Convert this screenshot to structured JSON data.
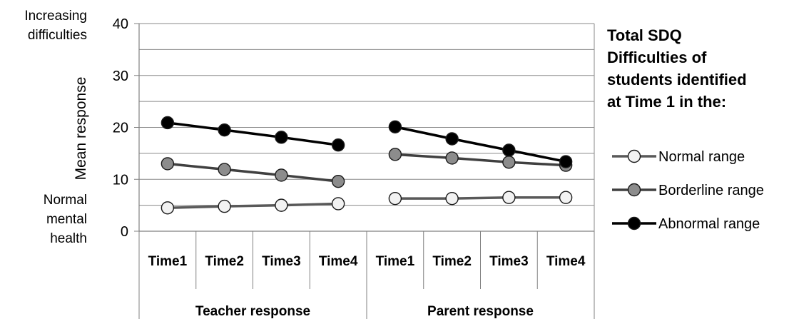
{
  "chart_data": {
    "type": "line",
    "ylabel": "Mean response",
    "ylim": [
      0,
      40
    ],
    "yticks": [
      0,
      10,
      20,
      30,
      40
    ],
    "y_top_annotation": [
      "Increasing",
      "difficulties"
    ],
    "y_bottom_annotation": [
      "Normal",
      "mental",
      "health"
    ],
    "groups": [
      {
        "label": "Teacher response",
        "categories": [
          "Time1",
          "Time2",
          "Time3",
          "Time4"
        ]
      },
      {
        "label": "Parent response",
        "categories": [
          "Time1",
          "Time2",
          "Time3",
          "Time4"
        ]
      }
    ],
    "legend_title": [
      "Total SDQ",
      "Difficulties of",
      "students identified",
      "at Time 1 in the:"
    ],
    "series": [
      {
        "name": "Normal range",
        "marker_fill": "#f2f2f2",
        "line_color": "#595959",
        "groups": [
          [
            4.5,
            4.8,
            5.0,
            5.3
          ],
          [
            6.3,
            6.3,
            6.5,
            6.5
          ]
        ]
      },
      {
        "name": "Borderline range",
        "marker_fill": "#8c8c8c",
        "line_color": "#404040",
        "groups": [
          [
            13.0,
            11.9,
            10.8,
            9.6
          ],
          [
            14.8,
            14.1,
            13.3,
            12.7
          ]
        ]
      },
      {
        "name": "Abnormal range",
        "marker_fill": "#000000",
        "line_color": "#000000",
        "groups": [
          [
            20.9,
            19.5,
            18.1,
            16.6
          ],
          [
            20.1,
            17.8,
            15.6,
            13.4
          ]
        ]
      }
    ],
    "grid": true,
    "legend_position": "right"
  }
}
